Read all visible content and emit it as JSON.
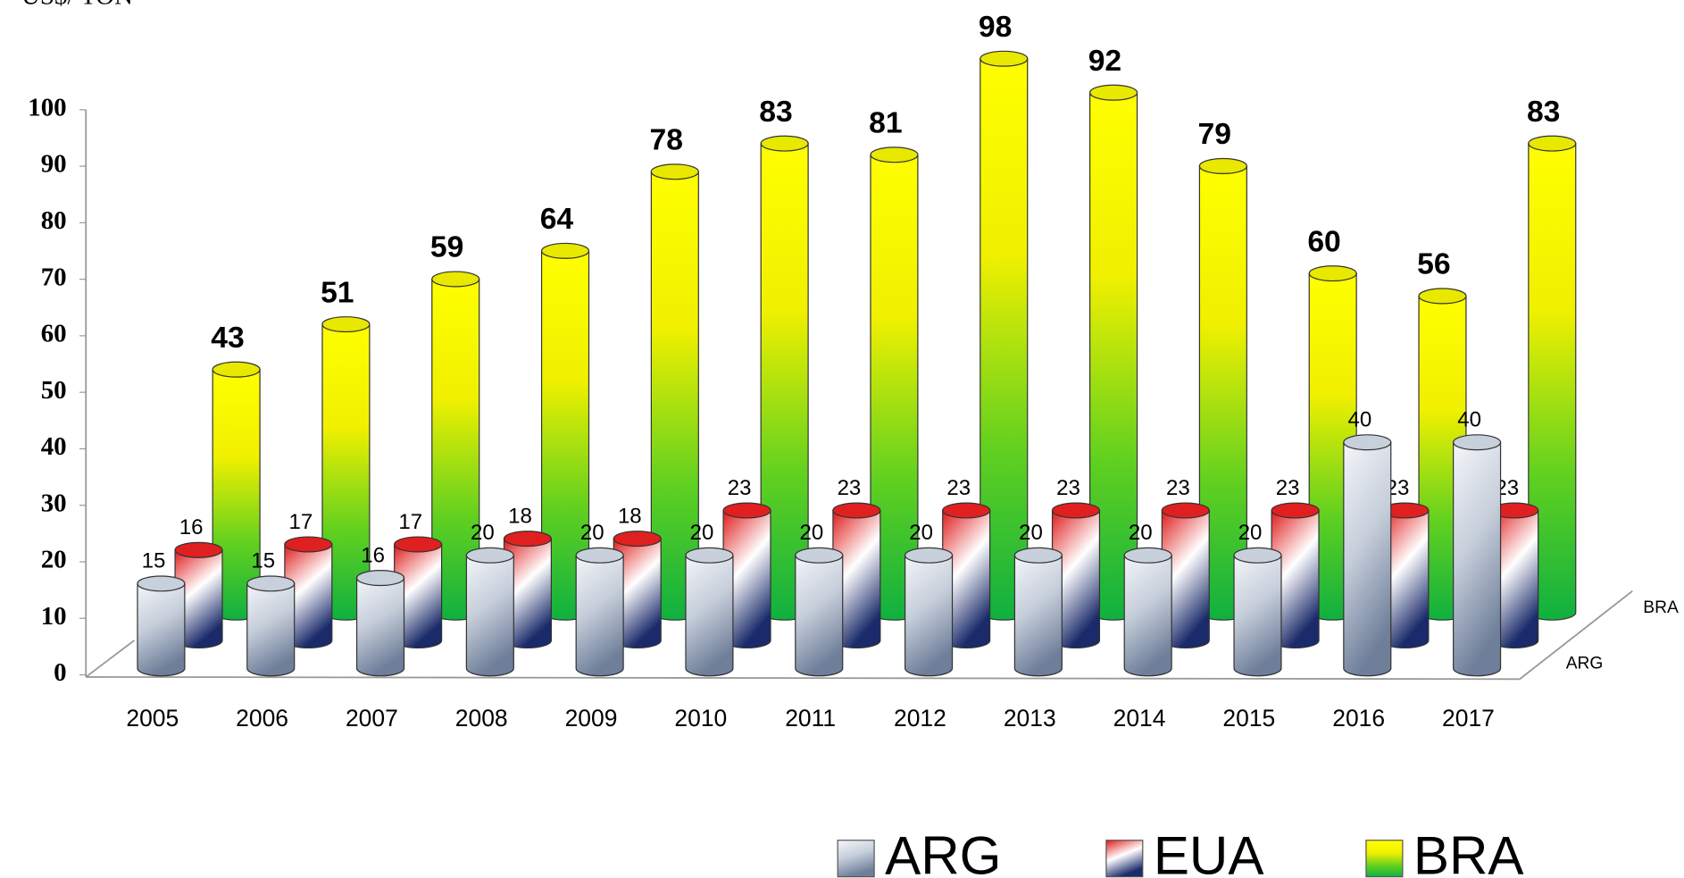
{
  "chart_data": {
    "type": "bar3d",
    "y_label": "US$/ TON",
    "categories": [
      "2005",
      "2006",
      "2007",
      "2008",
      "2009",
      "2010",
      "2011",
      "2012",
      "2013",
      "2014",
      "2015",
      "2016",
      "2017"
    ],
    "series": [
      {
        "name": "ARG",
        "color": "#c8d0dc",
        "values": [
          15,
          15,
          16,
          20,
          20,
          20,
          20,
          20,
          20,
          20,
          20,
          40,
          40
        ]
      },
      {
        "name": "EUA",
        "color": "#e02020",
        "values": [
          16,
          17,
          17,
          18,
          18,
          23,
          23,
          23,
          23,
          23,
          23,
          23,
          23
        ]
      },
      {
        "name": "BRA",
        "color": "#e8e800",
        "values": [
          43,
          51,
          59,
          64,
          78,
          83,
          81,
          98,
          92,
          79,
          60,
          56,
          83
        ]
      }
    ],
    "depth_labels": [
      "ARG",
      "BRA"
    ],
    "ylim": [
      0,
      100
    ],
    "yticks": [
      0,
      10,
      20,
      30,
      40,
      50,
      60,
      70,
      80,
      90,
      100
    ]
  }
}
